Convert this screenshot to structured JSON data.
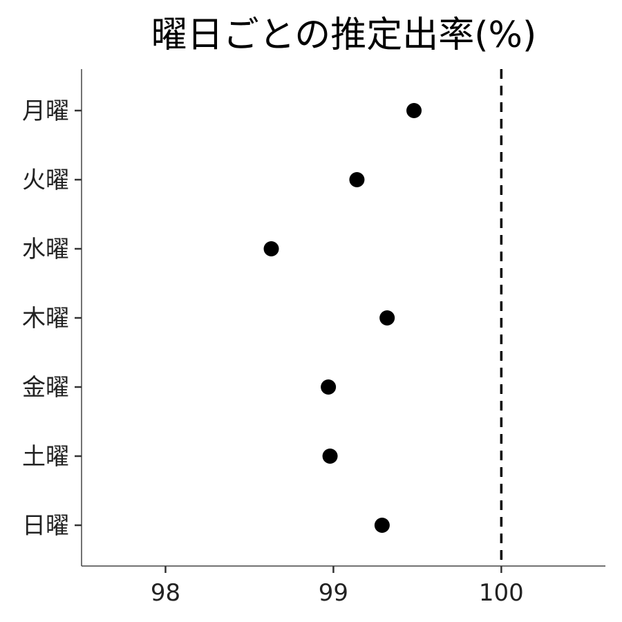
{
  "chart_data": {
    "type": "scatter",
    "title": "曜日ごとの推定出率(%)",
    "xlabel": "",
    "ylabel": "",
    "xlim": [
      97.5,
      100.62
    ],
    "xticks": [
      98,
      99,
      100
    ],
    "reference_line": {
      "x": 100,
      "style": "dashed"
    },
    "grid": false,
    "categories": [
      "月曜",
      "火曜",
      "水曜",
      "木曜",
      "金曜",
      "土曜",
      "日曜"
    ],
    "values": [
      99.48,
      99.14,
      98.63,
      99.32,
      98.97,
      98.98,
      99.29
    ]
  }
}
